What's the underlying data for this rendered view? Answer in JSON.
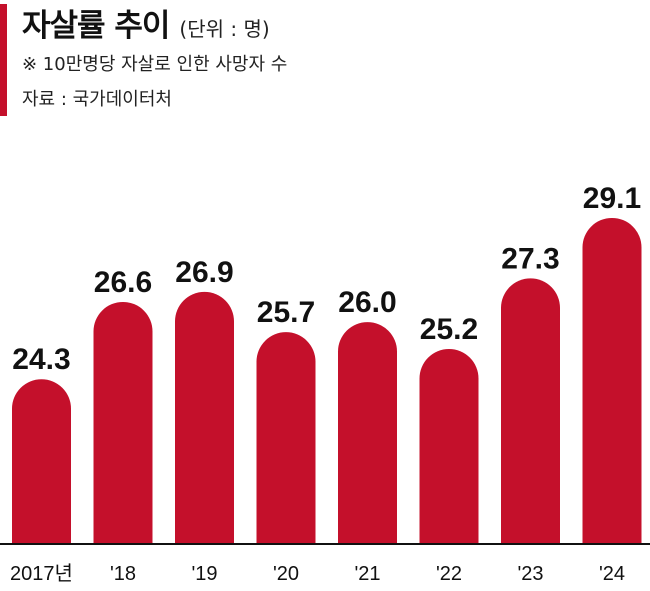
{
  "header": {
    "title": "자살률 추이",
    "unit": "(단위 : 명)",
    "note": "※ 10만명당 자살로 인한 사망자 수",
    "source": "자료 : 국가데이터처"
  },
  "colors": {
    "bar": "#c4102b",
    "accent": "#c4102b",
    "axis": "#111111"
  },
  "chart_data": {
    "type": "bar",
    "title": "자살률 추이",
    "categories": [
      "2017년",
      "'18",
      "'19",
      "'20",
      "'21",
      "'22",
      "'23",
      "'24"
    ],
    "values": [
      24.3,
      26.6,
      26.9,
      25.7,
      26.0,
      25.2,
      27.3,
      29.1
    ],
    "value_labels": [
      "24.3",
      "26.6",
      "26.9",
      "25.7",
      "26.0",
      "25.2",
      "27.3",
      "29.1"
    ],
    "xlabel": "",
    "ylabel": "",
    "ylim": [
      0,
      30
    ],
    "grid": false,
    "legend": "none"
  }
}
